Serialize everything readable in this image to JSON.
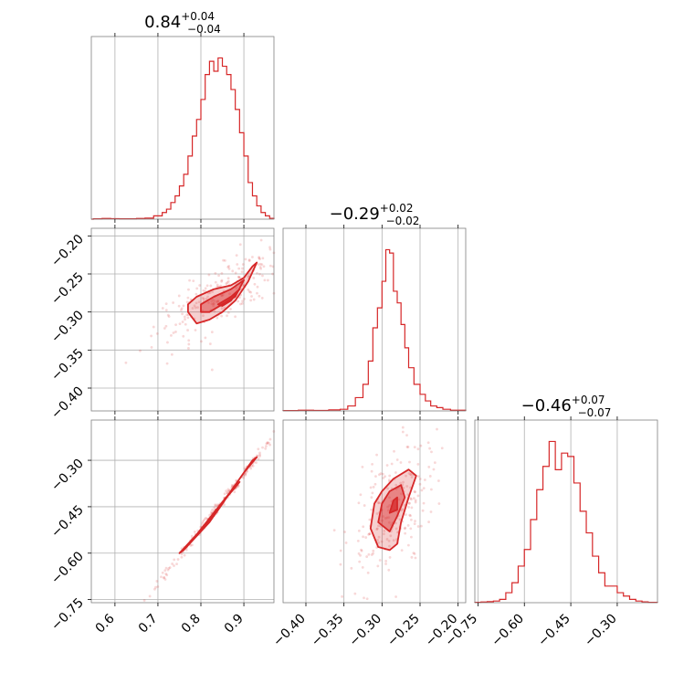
{
  "chart_data": [
    {
      "type": "histogram",
      "panel": "row1-col1",
      "title_value": "0.84",
      "title_plus": "+0.04",
      "title_minus": "−0.04",
      "xlim": [
        0.545,
        0.97
      ],
      "xticks": [
        0.6,
        0.7,
        0.8,
        0.9
      ],
      "grid": true,
      "color": "#d62728",
      "bins": [
        [
          0.55,
          0.002
        ],
        [
          0.57,
          0.004
        ],
        [
          0.59,
          0.003
        ],
        [
          0.61,
          0.002
        ],
        [
          0.63,
          0.002
        ],
        [
          0.65,
          0.004
        ],
        [
          0.67,
          0.006
        ],
        [
          0.69,
          0.02
        ],
        [
          0.71,
          0.04
        ],
        [
          0.72,
          0.06
        ],
        [
          0.73,
          0.1
        ],
        [
          0.74,
          0.14
        ],
        [
          0.75,
          0.2
        ],
        [
          0.76,
          0.27
        ],
        [
          0.77,
          0.38
        ],
        [
          0.78,
          0.5
        ],
        [
          0.79,
          0.6
        ],
        [
          0.8,
          0.72
        ],
        [
          0.81,
          0.87
        ],
        [
          0.82,
          0.95
        ],
        [
          0.83,
          0.89
        ],
        [
          0.84,
          0.97
        ],
        [
          0.85,
          0.92
        ],
        [
          0.86,
          0.87
        ],
        [
          0.87,
          0.78
        ],
        [
          0.88,
          0.66
        ],
        [
          0.89,
          0.52
        ],
        [
          0.9,
          0.38
        ],
        [
          0.91,
          0.22
        ],
        [
          0.92,
          0.14
        ],
        [
          0.93,
          0.08
        ],
        [
          0.94,
          0.04
        ],
        [
          0.95,
          0.02
        ],
        [
          0.96,
          0.005
        ]
      ]
    },
    {
      "type": "scatter+contour",
      "panel": "row2-col1",
      "xlim": [
        0.545,
        0.97
      ],
      "ylim": [
        -0.43,
        -0.19
      ],
      "xticks": [
        0.6,
        0.7,
        0.8,
        0.9
      ],
      "yticks": [
        -0.2,
        -0.25,
        -0.3,
        -0.35,
        -0.4
      ],
      "ytick_labels": [
        "−0.20",
        "−0.25",
        "−0.30",
        "−0.35",
        "−0.40"
      ],
      "grid": true,
      "color": "#d62728",
      "center": [
        0.84,
        -0.29
      ],
      "contours": [
        [
          [
            0.77,
            -0.29
          ],
          [
            0.79,
            -0.28
          ],
          [
            0.83,
            -0.27
          ],
          [
            0.87,
            -0.265
          ],
          [
            0.9,
            -0.255
          ],
          [
            0.92,
            -0.24
          ],
          [
            0.93,
            -0.235
          ],
          [
            0.91,
            -0.26
          ],
          [
            0.88,
            -0.285
          ],
          [
            0.85,
            -0.3
          ],
          [
            0.82,
            -0.31
          ],
          [
            0.79,
            -0.315
          ],
          [
            0.77,
            -0.3
          ]
        ],
        [
          [
            0.8,
            -0.29
          ],
          [
            0.83,
            -0.28
          ],
          [
            0.87,
            -0.27
          ],
          [
            0.9,
            -0.258
          ],
          [
            0.88,
            -0.28
          ],
          [
            0.85,
            -0.29
          ],
          [
            0.82,
            -0.3
          ],
          [
            0.8,
            -0.3
          ]
        ],
        [
          [
            0.84,
            -0.29
          ],
          [
            0.87,
            -0.28
          ],
          [
            0.89,
            -0.27
          ],
          [
            0.87,
            -0.285
          ],
          [
            0.85,
            -0.292
          ]
        ]
      ]
    },
    {
      "type": "scatter+contour",
      "panel": "row3-col1",
      "xlim": [
        0.545,
        0.97
      ],
      "ylim": [
        -0.76,
        -0.17
      ],
      "xticks": [
        0.6,
        0.7,
        0.8,
        0.9
      ],
      "xtick_labels": [
        "0.6",
        "0.7",
        "0.8",
        "0.9"
      ],
      "yticks": [
        -0.3,
        -0.45,
        -0.6,
        -0.75
      ],
      "ytick_labels": [
        "−0.30",
        "−0.45",
        "−0.60",
        "−0.75"
      ],
      "grid": true,
      "color": "#d62728",
      "contours": [
        [
          [
            0.75,
            -0.6
          ],
          [
            0.79,
            -0.54
          ],
          [
            0.83,
            -0.47
          ],
          [
            0.87,
            -0.4
          ],
          [
            0.9,
            -0.34
          ],
          [
            0.93,
            -0.29
          ],
          [
            0.92,
            -0.3
          ],
          [
            0.88,
            -0.38
          ],
          [
            0.84,
            -0.46
          ],
          [
            0.8,
            -0.53
          ],
          [
            0.76,
            -0.59
          ]
        ],
        [
          [
            0.8,
            -0.53
          ],
          [
            0.83,
            -0.48
          ],
          [
            0.86,
            -0.42
          ],
          [
            0.89,
            -0.37
          ],
          [
            0.88,
            -0.38
          ],
          [
            0.85,
            -0.44
          ],
          [
            0.82,
            -0.5
          ]
        ]
      ]
    },
    {
      "type": "histogram",
      "panel": "row2-col2",
      "title_value": "−0.29",
      "title_plus": "+0.02",
      "title_minus": "−0.02",
      "xlim": [
        -0.43,
        -0.19
      ],
      "xticks": [
        -0.4,
        -0.35,
        -0.3,
        -0.25,
        -0.2
      ],
      "grid": true,
      "color": "#d62728",
      "bins": [
        [
          -0.43,
          0.002
        ],
        [
          -0.41,
          0.004
        ],
        [
          -0.39,
          0.003
        ],
        [
          -0.37,
          0.006
        ],
        [
          -0.355,
          0.01
        ],
        [
          -0.345,
          0.03
        ],
        [
          -0.335,
          0.08
        ],
        [
          -0.325,
          0.16
        ],
        [
          -0.318,
          0.3
        ],
        [
          -0.312,
          0.5
        ],
        [
          -0.306,
          0.62
        ],
        [
          -0.3,
          0.78
        ],
        [
          -0.295,
          0.97
        ],
        [
          -0.29,
          0.95
        ],
        [
          -0.285,
          0.72
        ],
        [
          -0.28,
          0.65
        ],
        [
          -0.275,
          0.52
        ],
        [
          -0.27,
          0.38
        ],
        [
          -0.265,
          0.26
        ],
        [
          -0.258,
          0.16
        ],
        [
          -0.25,
          0.1
        ],
        [
          -0.243,
          0.06
        ],
        [
          -0.236,
          0.03
        ],
        [
          -0.228,
          0.02
        ],
        [
          -0.22,
          0.01
        ],
        [
          -0.21,
          0.004
        ]
      ]
    },
    {
      "type": "scatter+contour",
      "panel": "row3-col2",
      "xlim": [
        -0.43,
        -0.19
      ],
      "ylim": [
        -0.76,
        -0.17
      ],
      "xticks": [
        -0.4,
        -0.35,
        -0.3,
        -0.25,
        -0.2
      ],
      "xtick_labels": [
        "−0.40",
        "−0.35",
        "−0.30",
        "−0.25",
        "−0.20"
      ],
      "grid": true,
      "color": "#d62728",
      "contours": [
        [
          [
            -0.315,
            -0.52
          ],
          [
            -0.31,
            -0.44
          ],
          [
            -0.3,
            -0.4
          ],
          [
            -0.285,
            -0.36
          ],
          [
            -0.265,
            -0.33
          ],
          [
            -0.255,
            -0.35
          ],
          [
            -0.265,
            -0.42
          ],
          [
            -0.275,
            -0.5
          ],
          [
            -0.28,
            -0.57
          ],
          [
            -0.29,
            -0.59
          ],
          [
            -0.305,
            -0.58
          ]
        ],
        [
          [
            -0.305,
            -0.5
          ],
          [
            -0.3,
            -0.44
          ],
          [
            -0.29,
            -0.4
          ],
          [
            -0.275,
            -0.38
          ],
          [
            -0.27,
            -0.42
          ],
          [
            -0.28,
            -0.48
          ],
          [
            -0.29,
            -0.53
          ]
        ],
        [
          [
            -0.29,
            -0.47
          ],
          [
            -0.285,
            -0.43
          ],
          [
            -0.28,
            -0.42
          ],
          [
            -0.28,
            -0.46
          ]
        ]
      ]
    },
    {
      "type": "histogram",
      "panel": "row3-col3",
      "title_value": "−0.46",
      "title_plus": "+0.07",
      "title_minus": "−0.07",
      "xlim": [
        -0.76,
        -0.17
      ],
      "xticks": [
        -0.75,
        -0.6,
        -0.45,
        -0.3
      ],
      "xtick_labels": [
        "−0.75",
        "−0.60",
        "−0.45",
        "−0.30"
      ],
      "grid": true,
      "color": "#d62728",
      "bins": [
        [
          -0.76,
          0.002
        ],
        [
          -0.74,
          0.004
        ],
        [
          -0.72,
          0.006
        ],
        [
          -0.7,
          0.01
        ],
        [
          -0.68,
          0.02
        ],
        [
          -0.66,
          0.06
        ],
        [
          -0.64,
          0.12
        ],
        [
          -0.62,
          0.22
        ],
        [
          -0.6,
          0.32
        ],
        [
          -0.58,
          0.5
        ],
        [
          -0.56,
          0.68
        ],
        [
          -0.54,
          0.82
        ],
        [
          -0.52,
          0.97
        ],
        [
          -0.5,
          0.8
        ],
        [
          -0.48,
          0.9
        ],
        [
          -0.46,
          0.88
        ],
        [
          -0.44,
          0.72
        ],
        [
          -0.42,
          0.55
        ],
        [
          -0.4,
          0.42
        ],
        [
          -0.38,
          0.28
        ],
        [
          -0.36,
          0.18
        ],
        [
          -0.34,
          0.1
        ],
        [
          -0.32,
          0.1
        ],
        [
          -0.3,
          0.06
        ],
        [
          -0.28,
          0.04
        ],
        [
          -0.26,
          0.02
        ],
        [
          -0.24,
          0.01
        ],
        [
          -0.22,
          0.005
        ],
        [
          -0.2,
          0.002
        ]
      ]
    }
  ]
}
